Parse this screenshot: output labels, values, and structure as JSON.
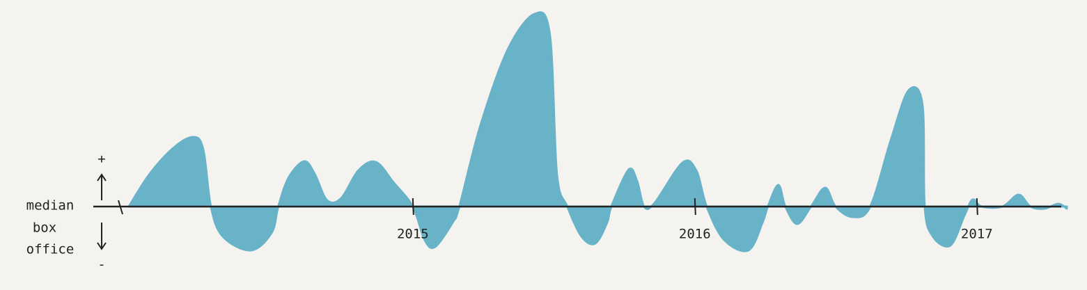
{
  "chart_data": {
    "type": "area",
    "y_label_lines": [
      "median",
      "box",
      "office"
    ],
    "plus_label": "+",
    "minus_label": "-",
    "color": "#69b3c9",
    "baseline_color": "#222222",
    "x": [
      2013.993,
      2014.067,
      2014.153,
      2014.222,
      2014.257,
      2014.284,
      2014.326,
      2014.425,
      2014.499,
      2014.523,
      2014.56,
      2014.615,
      2014.652,
      2014.696,
      2014.746,
      2014.807,
      2014.869,
      2014.931,
      2015.0,
      2015.042,
      2015.079,
      2015.141,
      2015.165,
      2015.24,
      2015.338,
      2015.432,
      2015.486,
      2015.511,
      2015.548,
      2015.598,
      2015.647,
      2015.689,
      2015.704,
      2015.765,
      2015.795,
      2015.82,
      2015.857,
      2015.956,
      2016.005,
      2016.042,
      2016.104,
      2016.19,
      2016.24,
      2016.259,
      2016.296,
      2016.321,
      2016.363,
      2016.412,
      2016.462,
      2016.499,
      2016.56,
      2016.622,
      2016.696,
      2016.758,
      2016.807,
      2016.815,
      2016.844,
      2016.906,
      2016.956,
      2016.985,
      2017.017,
      2017.091,
      2017.148,
      2017.19,
      2017.24,
      2017.289,
      2017.319
    ],
    "values": [
      0,
      4.7,
      8.5,
      10,
      8.2,
      0,
      -4.3,
      -6.3,
      -3.8,
      0,
      4.2,
      6.5,
      4.7,
      0.9,
      1.2,
      5.2,
      6.4,
      3.5,
      0,
      -4.8,
      -5.8,
      -2.3,
      0,
      11.7,
      22.7,
      27.7,
      24.7,
      4.7,
      0,
      -4.3,
      -5.3,
      -2.3,
      0,
      5.3,
      3.7,
      0,
      0.5,
      6.3,
      5.2,
      0,
      -4.8,
      -6.3,
      -2.3,
      0,
      3.1,
      0,
      -2.5,
      0,
      2.7,
      0,
      -1.5,
      0,
      9.7,
      16.7,
      14.7,
      0,
      -4.3,
      -5.6,
      -1.3,
      1,
      0,
      0,
      1.7,
      0,
      -0.3,
      0.4,
      -0.3
    ],
    "xlim": [
      2013.993,
      2017.319
    ],
    "xticks": [
      2015,
      2016,
      2017
    ],
    "ylim": [
      -8,
      29
    ]
  }
}
